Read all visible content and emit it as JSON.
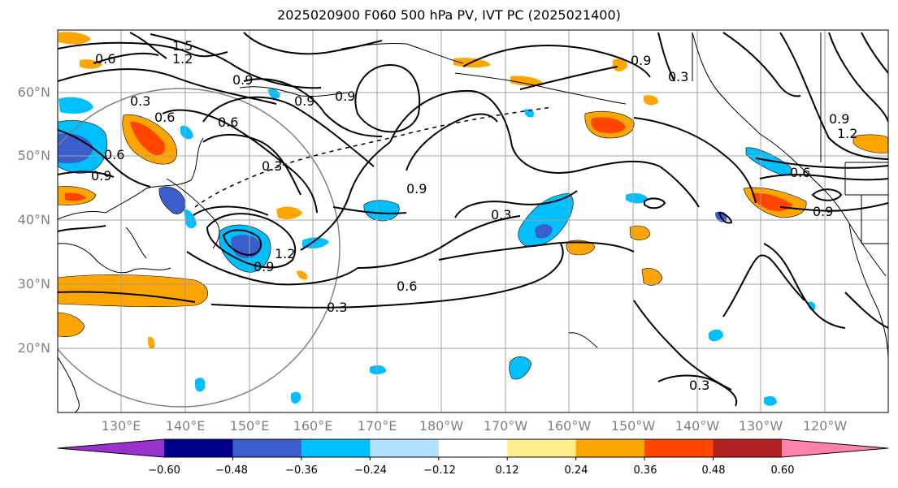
{
  "title": "2025020900 F060 500 hPa PV, IVT PC (2025021400)",
  "map": {
    "lat_labels": [
      "60°N",
      "50°N",
      "40°N",
      "30°N",
      "20°N"
    ],
    "lon_labels": [
      "130°E",
      "140°E",
      "150°E",
      "160°E",
      "170°E",
      "180°W",
      "170°W",
      "160°W",
      "150°W",
      "140°W",
      "130°W",
      "120°W"
    ],
    "contour_labels": [
      "1.5",
      "1.2",
      "0.6",
      "0.9",
      "0.6",
      "0.6",
      "0.9",
      "0.3",
      "0.9",
      "0.3",
      "0.9",
      "1.2",
      "0.9",
      "0.6",
      "0.3",
      "0.3",
      "0.9",
      "0.6",
      "0.3",
      "0.9",
      "0.6",
      "0.9",
      "0.9",
      "1.2",
      "0.3"
    ]
  },
  "colorbar": {
    "ticks": [
      "−0.60",
      "−0.48",
      "−0.36",
      "−0.24",
      "−0.12",
      "0.12",
      "0.24",
      "0.36",
      "0.48",
      "0.60"
    ],
    "colors": [
      "#9932cc",
      "#00008b",
      "#3a5fcd",
      "#00bfff",
      "#b0e2ff",
      "#ffffff",
      "#ffec8b",
      "#ffa500",
      "#ff4500",
      "#b22222",
      "#ff82ab"
    ]
  }
}
